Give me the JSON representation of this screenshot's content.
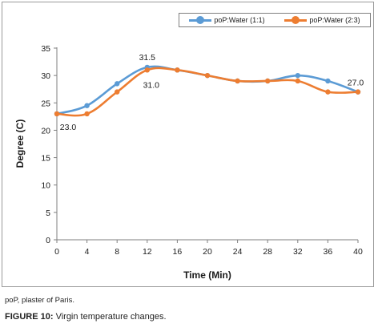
{
  "chart_data": {
    "type": "line",
    "xlabel": "Time (Min)",
    "ylabel": "Degree (C)",
    "x": [
      0,
      4,
      8,
      12,
      16,
      20,
      24,
      28,
      32,
      36,
      40
    ],
    "xlim": [
      0,
      40
    ],
    "ylim": [
      0,
      35
    ],
    "yticks": [
      0,
      5,
      10,
      15,
      20,
      25,
      30,
      35
    ],
    "grid": false,
    "legend_position": "top-right",
    "smooth": true,
    "series": [
      {
        "name": "poP:Water (1:1)",
        "color": "#5b9bd5",
        "values": [
          23.0,
          24.5,
          28.5,
          31.5,
          31.0,
          30.0,
          29.0,
          29.0,
          30.0,
          29.0,
          27.0
        ]
      },
      {
        "name": "poP:Water (2:3)",
        "color": "#ed7d31",
        "values": [
          23.0,
          23.0,
          27.0,
          31.0,
          31.0,
          30.0,
          29.0,
          29.0,
          29.0,
          27.0,
          27.0
        ]
      }
    ],
    "annotations": [
      {
        "text": "31.5",
        "x": 12,
        "y": 31.5,
        "series": 0
      },
      {
        "text": "31.0",
        "x": 12,
        "y": 31.0,
        "series": 1
      },
      {
        "text": "23.0",
        "x": 0,
        "y": 23.0,
        "series": 1
      },
      {
        "text": "27.0",
        "x": 40,
        "y": 27.0,
        "series": 1
      }
    ]
  },
  "footnote": "poP, plaster of Paris.",
  "caption": {
    "label": "FIGURE 10:",
    "text": " Virgin temperature changes."
  }
}
